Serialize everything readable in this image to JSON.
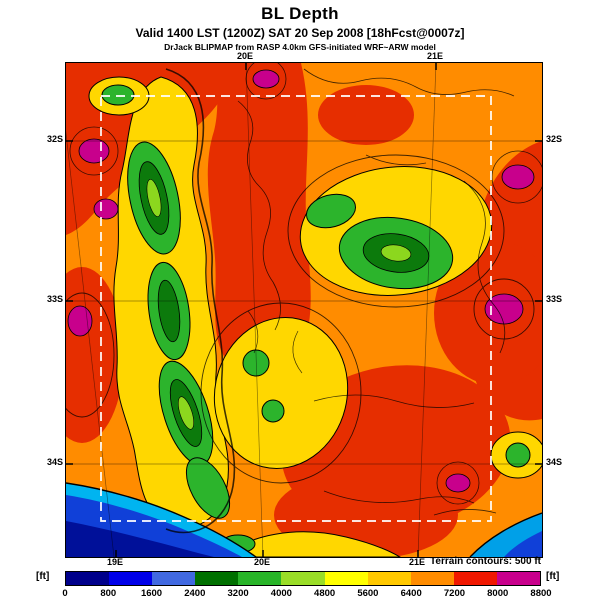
{
  "header": {
    "title": "BL Depth",
    "valid_line": "Valid 1400 LST (1200Z) SAT 20 Sep 2008 [18hFcst@0007z]",
    "model_line": "DrJack BLIPMAP from RASP 4.0km GFS-initiated WRF~ARW model"
  },
  "map": {
    "top_labels": [
      "20E",
      "21E"
    ],
    "bottom_labels": [
      "19E",
      "20E",
      "21E"
    ],
    "left_labels": [
      "32S",
      "33S",
      "34S"
    ],
    "right_labels": [
      "32S",
      "33S",
      "34S"
    ]
  },
  "colorbar": {
    "unit_left": "[ft]",
    "unit_right": "[ft]",
    "terrain_note": "Terrain contours: 500 ft",
    "values": [
      "0",
      "800",
      "1600",
      "2400",
      "3200",
      "4000",
      "4800",
      "5600",
      "6400",
      "7200",
      "8000",
      "8800"
    ],
    "colors": [
      "#00008b",
      "#0000e8",
      "#4169e1",
      "#007000",
      "#28b428",
      "#9add28",
      "#ffff00",
      "#ffc800",
      "#ff8c00",
      "#f01800",
      "#c8008c"
    ]
  }
}
